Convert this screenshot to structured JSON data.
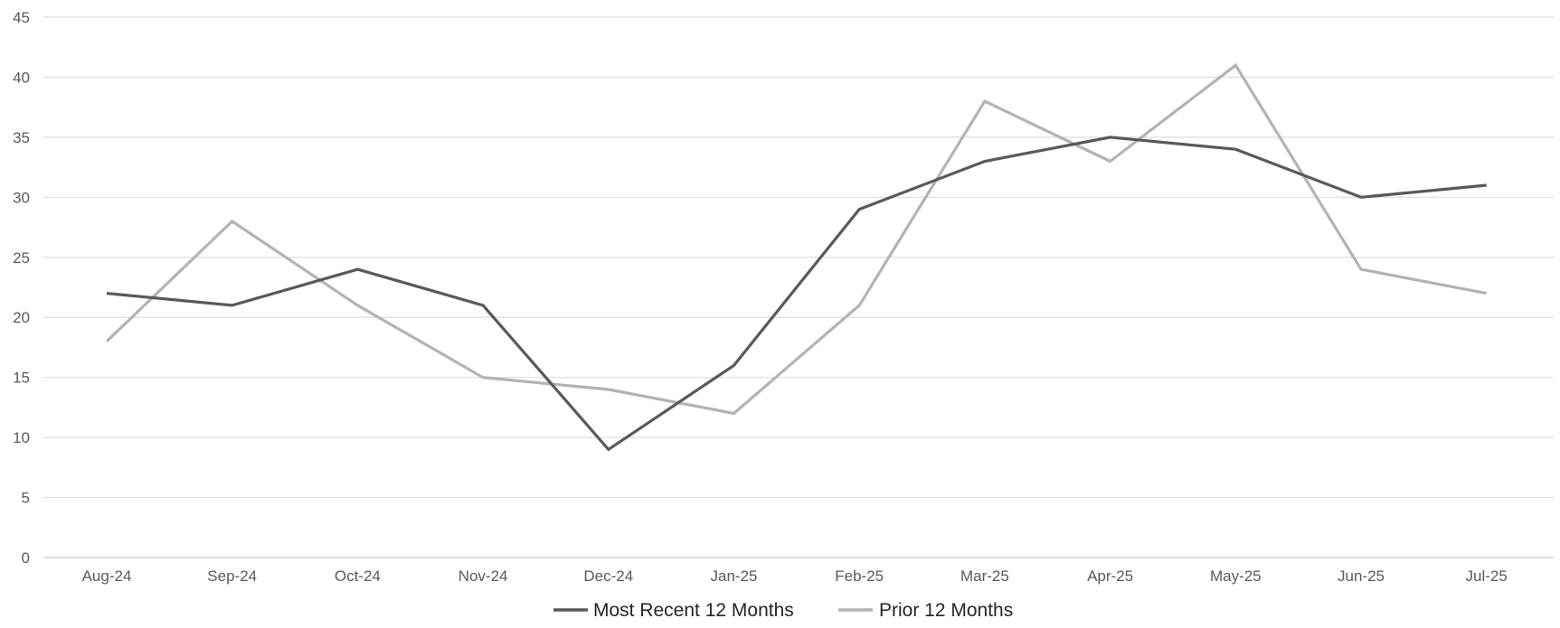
{
  "chart_data": {
    "type": "line",
    "title": "",
    "xlabel": "",
    "ylabel": "",
    "categories": [
      "Aug-24",
      "Sep-24",
      "Oct-24",
      "Nov-24",
      "Dec-24",
      "Jan-25",
      "Feb-25",
      "Mar-25",
      "Apr-25",
      "May-25",
      "Jun-25",
      "Jul-25"
    ],
    "ylim": [
      0,
      45
    ],
    "yticks": [
      "0",
      "5",
      "10",
      "15",
      "20",
      "25",
      "30",
      "35",
      "40",
      "45"
    ],
    "grid": true,
    "legend_position": "bottom",
    "series": [
      {
        "name": "Most Recent 12 Months",
        "color": "#595959",
        "values": [
          22,
          21,
          24,
          21,
          9,
          16,
          29,
          33,
          35,
          34,
          30,
          31
        ]
      },
      {
        "name": "Prior 12 Months",
        "color": "#b3b3b3",
        "values": [
          18,
          28,
          21,
          15,
          14,
          12,
          21,
          38,
          33,
          41,
          24,
          22
        ]
      }
    ]
  }
}
